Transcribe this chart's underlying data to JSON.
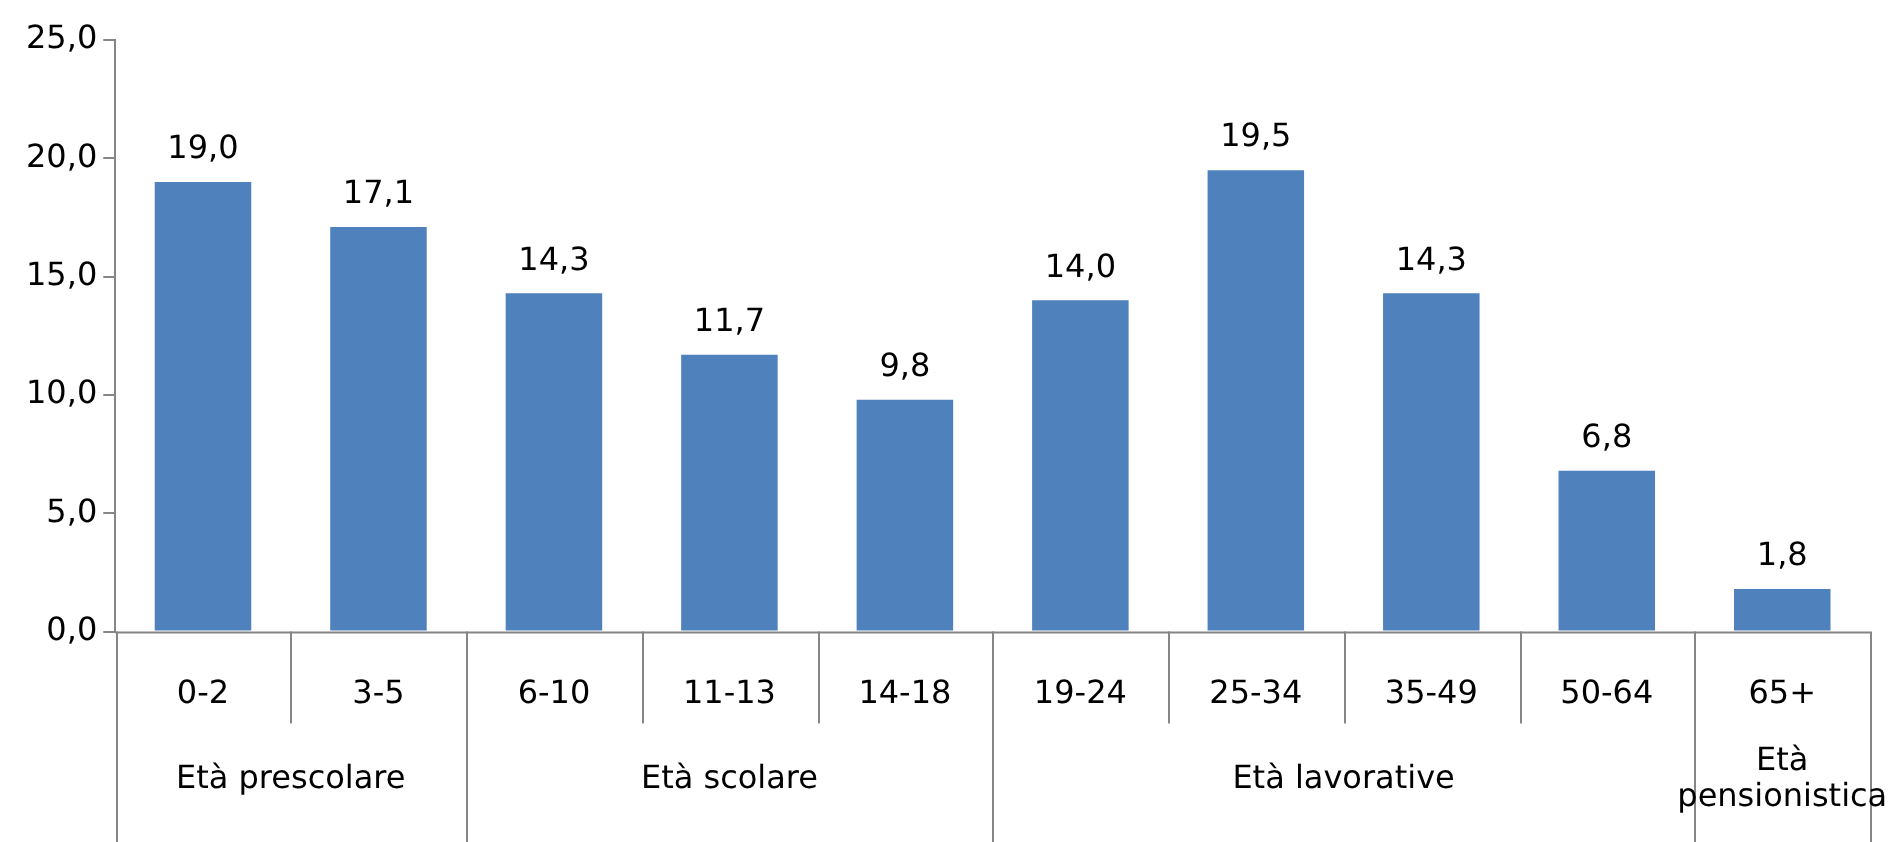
{
  "chart_data": {
    "type": "bar",
    "categories": [
      "0-2",
      "3-5",
      "6-10",
      "11-13",
      "14-18",
      "19-24",
      "25-34",
      "35-49",
      "50-64",
      "65+"
    ],
    "values": [
      19.0,
      17.1,
      14.3,
      11.7,
      9.8,
      14.0,
      19.5,
      14.3,
      6.8,
      1.8
    ],
    "value_labels": [
      "19,0",
      "17,1",
      "14,3",
      "11,7",
      "9,8",
      "14,0",
      "19,5",
      "14,3",
      "6,8",
      "1,8"
    ],
    "color": "#4f81bd",
    "ylim": [
      0,
      25
    ],
    "yticks": [
      {
        "value": 0,
        "label": "0,0"
      },
      {
        "value": 5,
        "label": "5,0"
      },
      {
        "value": 10,
        "label": "10,0"
      },
      {
        "value": 15,
        "label": "15,0"
      },
      {
        "value": 20,
        "label": "20,0"
      },
      {
        "value": 25,
        "label": "25,0"
      }
    ],
    "annotations": [
      "Età prescolare",
      "Età scolare",
      "Età lavorative",
      "Età pensionistica"
    ],
    "grid": false,
    "legend": false
  }
}
